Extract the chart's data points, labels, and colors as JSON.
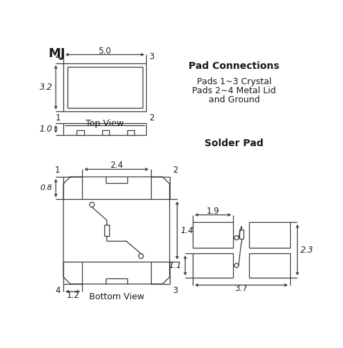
{
  "title": "MJ",
  "bg_color": "#ffffff",
  "line_color": "#3a3a3a",
  "text_color": "#1a1a1a",
  "pad_connections_title": "Pad Connections",
  "pad_connections_line1": "Pads 1~3 Crystal",
  "pad_connections_line2": "Pads 2~4 Metal Lid",
  "pad_connections_line3": "and Ground",
  "solder_pad_title": "Solder Pad",
  "top_view_label": "Top View",
  "bottom_view_label": "Bottom View",
  "dim_5_0": "5.0",
  "dim_3_2": "3.2",
  "dim_1_0": "1.0",
  "dim_2_4": "2.4",
  "dim_0_8": "0.8",
  "dim_1_4": "1.4",
  "dim_1_2": "1.2",
  "dim_1_9": "1.9",
  "dim_2_3": "2.3",
  "dim_1_1": "1.1",
  "dim_3_7": "3.7"
}
